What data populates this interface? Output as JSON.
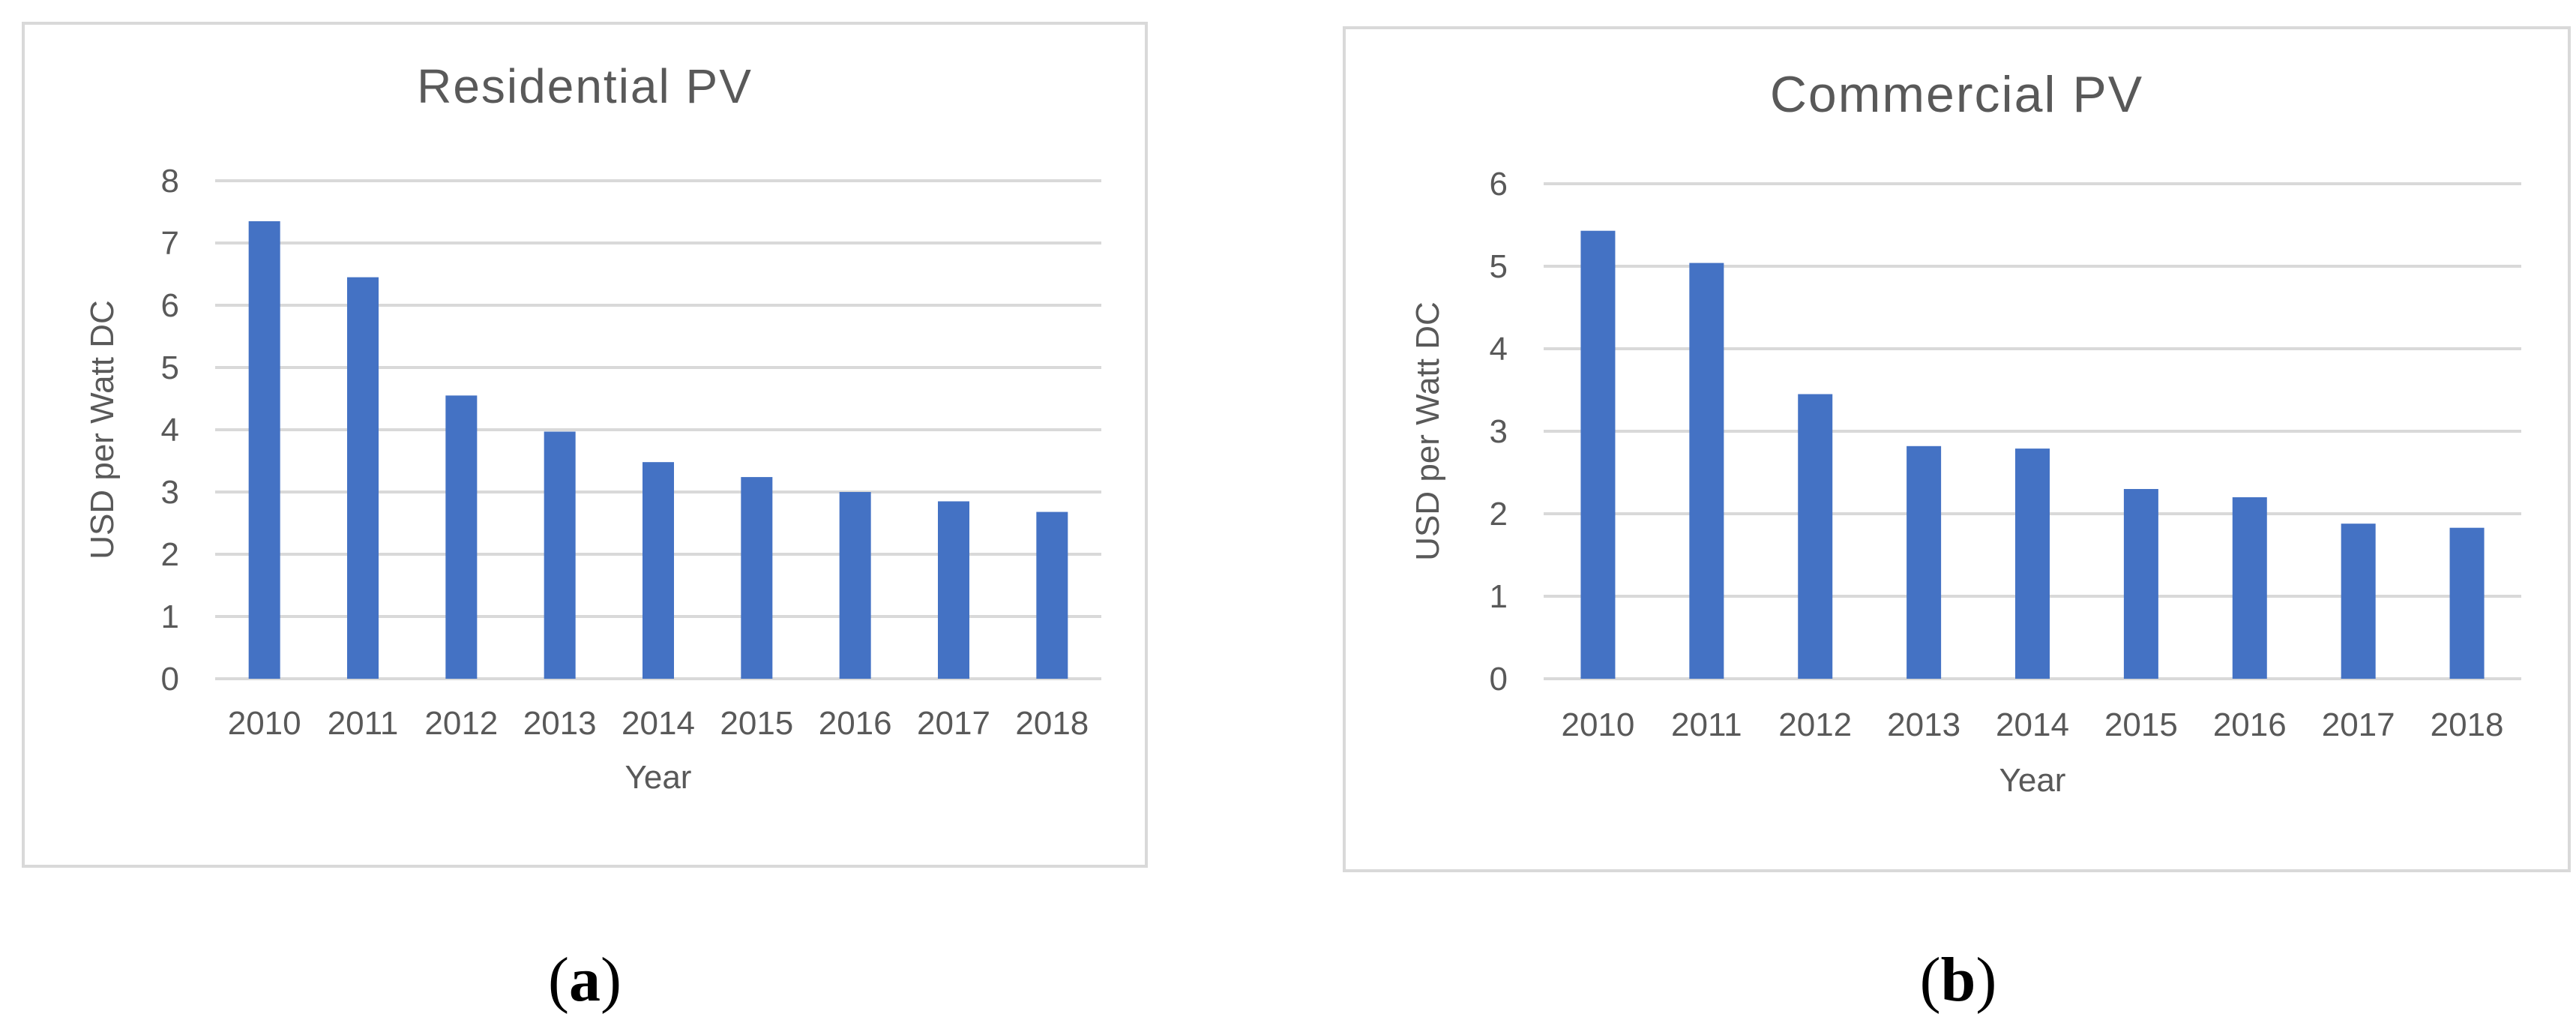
{
  "chart_data": [
    {
      "type": "bar",
      "title": "Residential PV",
      "xlabel": "Year",
      "ylabel": "USD per Watt DC",
      "categories": [
        "2010",
        "2011",
        "2012",
        "2013",
        "2014",
        "2015",
        "2016",
        "2017",
        "2018"
      ],
      "values": [
        7.35,
        6.45,
        4.55,
        3.97,
        3.48,
        3.24,
        3.0,
        2.85,
        2.68
      ],
      "ylim": [
        0,
        8
      ],
      "yticks": [
        "0",
        "1",
        "2",
        "3",
        "4",
        "5",
        "6",
        "7",
        "8"
      ],
      "grid": true,
      "bar_color": "#4472c4"
    },
    {
      "type": "bar",
      "title": "Commercial PV",
      "xlabel": "Year",
      "ylabel": "USD per Watt DC",
      "categories": [
        "2010",
        "2011",
        "2012",
        "2013",
        "2014",
        "2015",
        "2016",
        "2017",
        "2018"
      ],
      "values": [
        5.43,
        5.04,
        3.45,
        2.82,
        2.79,
        2.3,
        2.2,
        1.88,
        1.83
      ],
      "ylim": [
        0,
        6
      ],
      "yticks": [
        "0",
        "1",
        "2",
        "3",
        "4",
        "5",
        "6"
      ],
      "grid": true,
      "bar_color": "#4472c4"
    }
  ],
  "captions": [
    {
      "paren_open": "(",
      "letter": "a",
      "paren_close": ")"
    },
    {
      "paren_open": "(",
      "letter": "b",
      "paren_close": ")"
    }
  ]
}
